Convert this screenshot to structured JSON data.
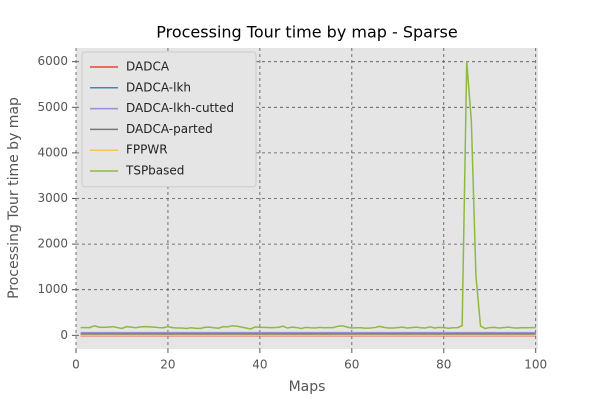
{
  "chart_data": {
    "type": "line",
    "title": "Processing Tour time by map - Sparse",
    "x_label": "Maps",
    "y_label": "Processing Tour time by map",
    "x": [
      1,
      2,
      3,
      4,
      5,
      6,
      7,
      8,
      9,
      10,
      11,
      12,
      13,
      14,
      15,
      16,
      17,
      18,
      19,
      20,
      21,
      22,
      23,
      24,
      25,
      26,
      27,
      28,
      29,
      30,
      31,
      32,
      33,
      34,
      35,
      36,
      37,
      38,
      39,
      40,
      41,
      42,
      43,
      44,
      45,
      46,
      47,
      48,
      49,
      50,
      51,
      52,
      53,
      54,
      55,
      56,
      57,
      58,
      59,
      60,
      61,
      62,
      63,
      64,
      65,
      66,
      67,
      68,
      69,
      70,
      71,
      72,
      73,
      74,
      75,
      76,
      77,
      78,
      79,
      80,
      81,
      82,
      83,
      84,
      85,
      86,
      87,
      88,
      89,
      90,
      91,
      92,
      93,
      94,
      95,
      96,
      97,
      98,
      99,
      100
    ],
    "series": [
      {
        "name": "DADCA",
        "color": "#E24A33",
        "values": [
          -10,
          -10,
          -10,
          -10,
          -10,
          -10,
          -10,
          -10,
          -10,
          -10,
          -10,
          -10,
          -10,
          -10,
          -10,
          -10,
          -10,
          -10,
          -10,
          -10,
          -10,
          -10,
          -10,
          -10,
          -10,
          -10,
          -10,
          -10,
          -10,
          -10,
          -10,
          -10,
          -10,
          -10,
          -10,
          -10,
          -10,
          -10,
          -10,
          -10,
          -10,
          -10,
          -10,
          -10,
          -10,
          -10,
          -10,
          -10,
          -10,
          -10,
          -10,
          -10,
          -10,
          -10,
          -10,
          -10,
          -10,
          -10,
          -10,
          -10,
          -10,
          -10,
          -10,
          -10,
          -10,
          -10,
          -10,
          -10,
          -10,
          -10,
          -10,
          -10,
          -10,
          -10,
          -10,
          -10,
          -10,
          -10,
          -10,
          -10,
          -10,
          -10,
          -10,
          -10,
          -10,
          -10,
          -10,
          -10,
          -10,
          -10,
          -10,
          -10,
          -10,
          -10,
          -10,
          -10,
          -10,
          -10,
          -10,
          -10
        ]
      },
      {
        "name": "DADCA-lkh",
        "color": "#348ABD",
        "values": [
          40,
          40,
          40,
          40,
          40,
          40,
          40,
          40,
          40,
          40,
          40,
          40,
          40,
          40,
          40,
          40,
          40,
          40,
          40,
          40,
          40,
          40,
          40,
          40,
          40,
          40,
          40,
          40,
          40,
          40,
          40,
          40,
          40,
          40,
          40,
          40,
          40,
          40,
          40,
          40,
          40,
          40,
          40,
          40,
          40,
          40,
          40,
          40,
          40,
          40,
          40,
          40,
          40,
          40,
          40,
          40,
          40,
          40,
          40,
          40,
          40,
          40,
          40,
          40,
          40,
          40,
          40,
          40,
          40,
          40,
          40,
          40,
          40,
          40,
          40,
          40,
          40,
          40,
          40,
          40,
          40,
          40,
          40,
          40,
          40,
          40,
          40,
          40,
          40,
          40,
          40,
          40,
          40,
          40,
          40,
          40,
          40,
          40,
          40,
          40
        ]
      },
      {
        "name": "DADCA-lkh-cutted",
        "color": "#988ED5",
        "values": [
          60,
          60,
          60,
          60,
          60,
          60,
          60,
          60,
          60,
          60,
          60,
          60,
          60,
          60,
          60,
          60,
          60,
          60,
          60,
          60,
          60,
          60,
          60,
          60,
          60,
          60,
          60,
          60,
          60,
          60,
          60,
          60,
          60,
          60,
          60,
          60,
          60,
          60,
          60,
          60,
          60,
          60,
          60,
          60,
          60,
          60,
          60,
          60,
          60,
          60,
          60,
          60,
          60,
          60,
          60,
          60,
          60,
          60,
          60,
          60,
          60,
          60,
          60,
          60,
          60,
          60,
          60,
          60,
          60,
          60,
          60,
          60,
          60,
          60,
          60,
          60,
          60,
          60,
          60,
          60,
          60,
          60,
          60,
          60,
          60,
          60,
          60,
          60,
          60,
          60,
          60,
          60,
          60,
          60,
          60,
          60,
          60,
          60,
          60,
          60
        ]
      },
      {
        "name": "DADCA-parted",
        "color": "#777777",
        "values": [
          20,
          20,
          20,
          20,
          20,
          20,
          20,
          20,
          20,
          20,
          20,
          20,
          20,
          20,
          20,
          20,
          20,
          20,
          20,
          20,
          20,
          20,
          20,
          20,
          20,
          20,
          20,
          20,
          20,
          20,
          20,
          20,
          20,
          20,
          20,
          20,
          20,
          20,
          20,
          20,
          20,
          20,
          20,
          20,
          20,
          20,
          20,
          20,
          20,
          20,
          20,
          20,
          20,
          20,
          20,
          20,
          20,
          20,
          20,
          20,
          20,
          20,
          20,
          20,
          20,
          20,
          20,
          20,
          20,
          20,
          20,
          20,
          20,
          20,
          20,
          20,
          20,
          20,
          20,
          20,
          20,
          20,
          20,
          20,
          20,
          20,
          20,
          20,
          20,
          20,
          20,
          20,
          20,
          20,
          20,
          20,
          20,
          20,
          20,
          20
        ]
      },
      {
        "name": "FPPWR",
        "color": "#FBC15E",
        "values": [
          0,
          0,
          0,
          0,
          0,
          0,
          0,
          0,
          0,
          0,
          0,
          0,
          0,
          0,
          0,
          0,
          0,
          0,
          0,
          0,
          0,
          0,
          0,
          0,
          0,
          0,
          0,
          0,
          0,
          0,
          0,
          0,
          0,
          0,
          0,
          0,
          0,
          0,
          0,
          0,
          0,
          0,
          0,
          0,
          0,
          0,
          0,
          0,
          0,
          0,
          0,
          0,
          0,
          0,
          0,
          0,
          0,
          0,
          0,
          0,
          0,
          0,
          0,
          0,
          0,
          0,
          0,
          0,
          0,
          0,
          0,
          0,
          0,
          0,
          0,
          0,
          0,
          0,
          0,
          0,
          0,
          0,
          0,
          0,
          0,
          0,
          0,
          0,
          0,
          0,
          0,
          0,
          0,
          0,
          0,
          0,
          0,
          0,
          0,
          0
        ]
      },
      {
        "name": "TSPbased",
        "color": "#8EBA42",
        "values": [
          170,
          170,
          170,
          210,
          180,
          175,
          180,
          190,
          170,
          150,
          190,
          180,
          165,
          185,
          190,
          185,
          180,
          170,
          165,
          190,
          170,
          160,
          160,
          150,
          165,
          155,
          150,
          175,
          180,
          165,
          155,
          190,
          185,
          210,
          200,
          180,
          160,
          140,
          185,
          175,
          175,
          170,
          170,
          175,
          200,
          160,
          180,
          170,
          150,
          175,
          165,
          160,
          175,
          165,
          170,
          170,
          200,
          210,
          180,
          160,
          165,
          165,
          155,
          160,
          170,
          195,
          175,
          160,
          160,
          170,
          180,
          160,
          170,
          180,
          165,
          160,
          185,
          160,
          175,
          170,
          155,
          165,
          170,
          210,
          6000,
          4700,
          1300,
          200,
          150,
          170,
          175,
          160,
          170,
          180,
          165,
          160,
          170,
          165,
          170,
          170
        ]
      }
    ],
    "xlim": [
      0,
      100.5
    ],
    "ylim": [
      -300,
      6300
    ],
    "xticks": [
      0,
      20,
      40,
      60,
      80,
      100
    ],
    "yticks": [
      0,
      1000,
      2000,
      3000,
      4000,
      5000,
      6000
    ],
    "grid": true,
    "legend": "upper left"
  }
}
